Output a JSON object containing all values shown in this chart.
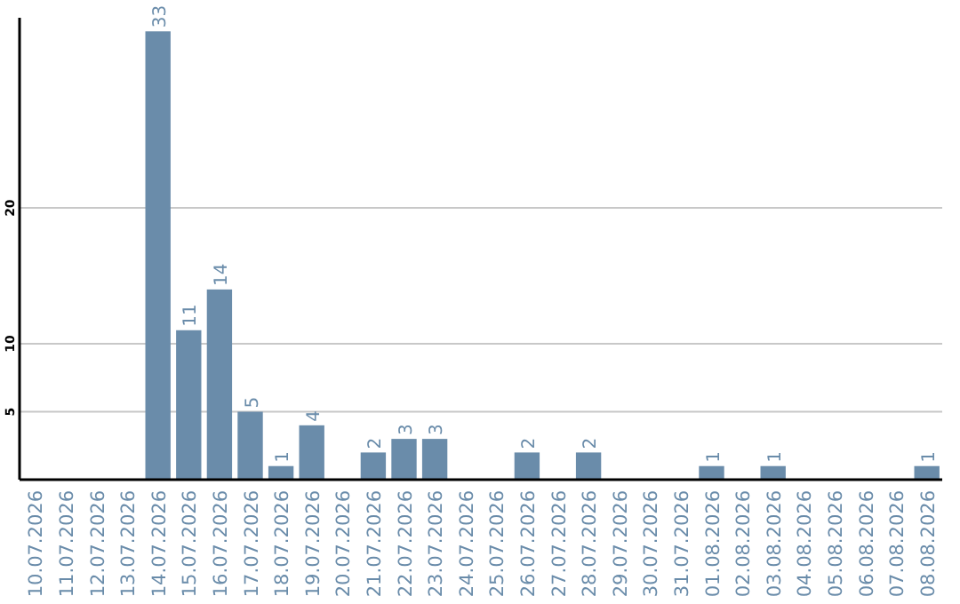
{
  "chart_data": {
    "type": "bar",
    "categories": [
      "10.07.2026",
      "11.07.2026",
      "12.07.2026",
      "13.07.2026",
      "14.07.2026",
      "15.07.2026",
      "16.07.2026",
      "17.07.2026",
      "18.07.2026",
      "19.07.2026",
      "20.07.2026",
      "21.07.2026",
      "22.07.2026",
      "23.07.2026",
      "24.07.2026",
      "25.07.2026",
      "26.07.2026",
      "27.07.2026",
      "28.07.2026",
      "29.07.2026",
      "30.07.2026",
      "31.07.2026",
      "01.08.2026",
      "02.08.2026",
      "03.08.2026",
      "04.08.2026",
      "05.08.2026",
      "06.08.2026",
      "07.08.2026",
      "08.08.2026"
    ],
    "values": [
      0,
      0,
      0,
      0,
      33,
      11,
      14,
      5,
      1,
      4,
      0,
      2,
      3,
      3,
      0,
      0,
      2,
      0,
      2,
      0,
      0,
      0,
      1,
      0,
      1,
      0,
      0,
      0,
      0,
      1
    ],
    "value_labels": [
      null,
      null,
      null,
      null,
      "33",
      "11",
      "14",
      "5",
      "1",
      "4",
      null,
      "2",
      "3",
      "3",
      null,
      null,
      "2",
      null,
      "2",
      null,
      null,
      null,
      "1",
      null,
      "1",
      null,
      null,
      null,
      null,
      "1"
    ],
    "color": "#6a8caa",
    "ylim": [
      0,
      34
    ],
    "yticks": [
      5,
      10,
      20
    ],
    "grid": "y"
  }
}
